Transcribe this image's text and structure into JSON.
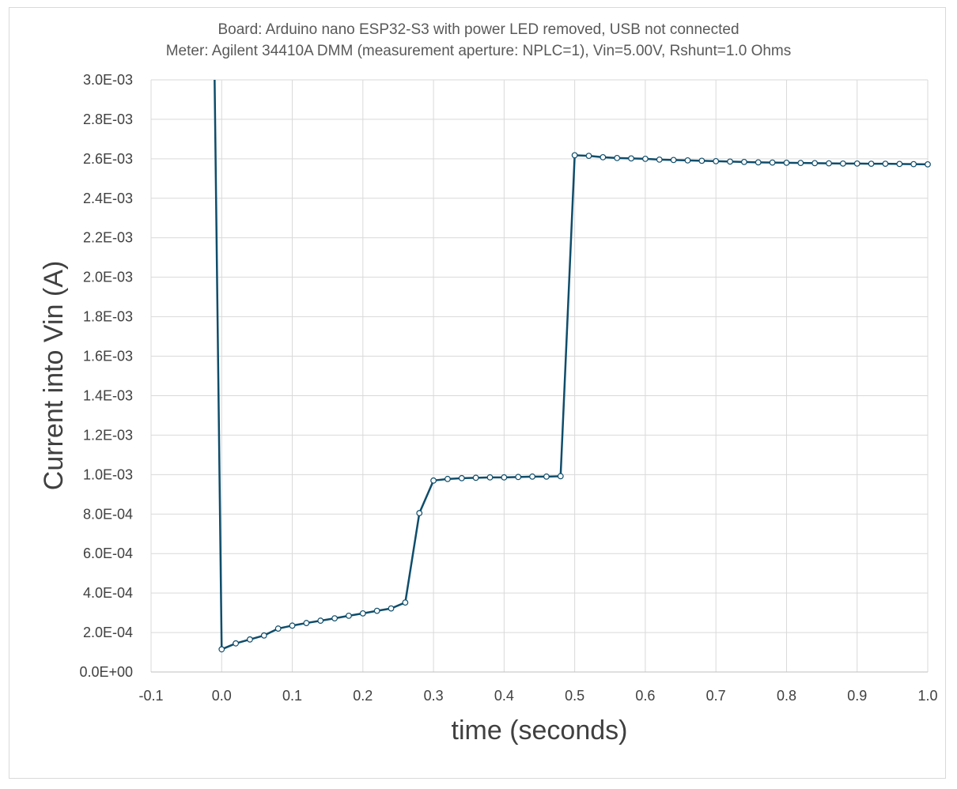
{
  "chart_data": {
    "type": "scatter",
    "title": "Board: Arduino nano ESP32-S3 with power LED removed, USB not connected",
    "subtitle": "Meter: Agilent 34410A DMM (measurement aperture: NPLC=1), Vin=5.00V, Rshunt=1.0 Ohms",
    "xlabel": "time (seconds)",
    "ylabel": "Current into Vin (A)",
    "xlim": [
      -0.1,
      1.0
    ],
    "ylim": [
      0,
      0.003
    ],
    "xticks": [
      -0.1,
      0.0,
      0.1,
      0.2,
      0.3,
      0.4,
      0.5,
      0.6,
      0.7,
      0.8,
      0.9,
      1.0
    ],
    "xtick_labels": [
      "-0.1",
      "0.0",
      "0.1",
      "0.2",
      "0.3",
      "0.4",
      "0.5",
      "0.6",
      "0.7",
      "0.8",
      "0.9",
      "1.0"
    ],
    "yticks": [
      0,
      0.0002,
      0.0004,
      0.0006,
      0.0008,
      0.001,
      0.0012,
      0.0014,
      0.0016,
      0.0018,
      0.002,
      0.0022,
      0.0024,
      0.0026,
      0.0028,
      0.003
    ],
    "ytick_labels": [
      "0.0E+00",
      "2.0E-04",
      "4.0E-04",
      "6.0E-04",
      "8.0E-04",
      "1.0E-03",
      "1.2E-03",
      "1.4E-03",
      "1.6E-03",
      "1.8E-03",
      "2.0E-03",
      "2.2E-03",
      "2.4E-03",
      "2.6E-03",
      "2.8E-03",
      "3.0E-03"
    ],
    "grid": true,
    "colors": {
      "series": "#0e4d6b",
      "grid": "#d9d9d9",
      "marker_fill": "#ffffff"
    },
    "series": [
      {
        "line_start": {
          "x": -0.01,
          "y": 0.003
        },
        "x": [
          0.0,
          0.02,
          0.04,
          0.06,
          0.08,
          0.1,
          0.12,
          0.14,
          0.16,
          0.18,
          0.2,
          0.22,
          0.24,
          0.26,
          0.28,
          0.3,
          0.32,
          0.34,
          0.36,
          0.38,
          0.4,
          0.42,
          0.44,
          0.46,
          0.48,
          0.5,
          0.52,
          0.54,
          0.56,
          0.58,
          0.6,
          0.62,
          0.64,
          0.66,
          0.68,
          0.7,
          0.72,
          0.74,
          0.76,
          0.78,
          0.8,
          0.82,
          0.84,
          0.86,
          0.88,
          0.9,
          0.92,
          0.94,
          0.96,
          0.98,
          1.0
        ],
        "y": [
          0.000115,
          0.000145,
          0.000165,
          0.000185,
          0.00022,
          0.000235,
          0.000248,
          0.00026,
          0.000272,
          0.000285,
          0.000297,
          0.00031,
          0.000322,
          0.000352,
          0.000805,
          0.00097,
          0.000978,
          0.000982,
          0.000984,
          0.000986,
          0.000986,
          0.000988,
          0.00099,
          0.00099,
          0.000992,
          0.002618,
          0.002615,
          0.002608,
          0.002604,
          0.002602,
          0.0026,
          0.002596,
          0.002594,
          0.002592,
          0.00259,
          0.002588,
          0.002586,
          0.002584,
          0.002582,
          0.002581,
          0.00258,
          0.002579,
          0.002578,
          0.002577,
          0.002576,
          0.002576,
          0.002575,
          0.002575,
          0.002574,
          0.002573,
          0.002572
        ]
      }
    ]
  }
}
